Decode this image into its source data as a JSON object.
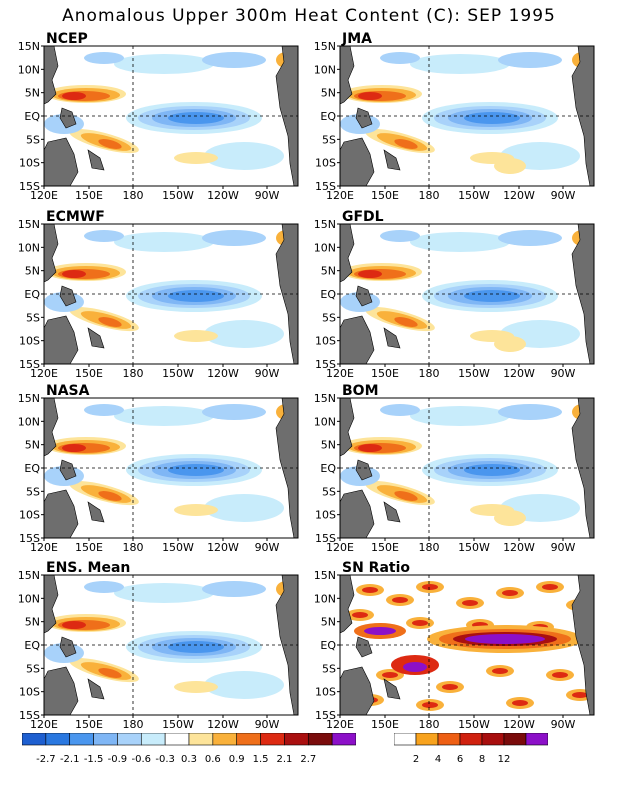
{
  "title": "Anomalous Upper 300m Heat Content (C): SEP 1995",
  "lat_labels": [
    "15N",
    "10N",
    "5N",
    "EQ",
    "5S",
    "10S",
    "15S"
  ],
  "lon_labels": [
    "120E",
    "150E",
    "180",
    "150W",
    "120W",
    "90W"
  ],
  "panels": [
    {
      "id": "ncep",
      "label": "NCEP"
    },
    {
      "id": "jma",
      "label": "JMA"
    },
    {
      "id": "ecmwf",
      "label": "ECMWF"
    },
    {
      "id": "gfdl",
      "label": "GFDL"
    },
    {
      "id": "nasa",
      "label": "NASA"
    },
    {
      "id": "bom",
      "label": "BOM"
    },
    {
      "id": "ens",
      "label": "ENS. Mean"
    },
    {
      "id": "sn",
      "label": "SN Ratio"
    }
  ],
  "colorbar_anom": {
    "labels": [
      "-2.7",
      "-2.1",
      "-1.5",
      "-0.9",
      "-0.6",
      "-0.3",
      "0.3",
      "0.6",
      "0.9",
      "1.5",
      "2.1",
      "2.7"
    ],
    "colors": [
      "#1e5fd0",
      "#2a78e0",
      "#4a96ee",
      "#7fb6f5",
      "#a8d2fa",
      "#c8ecfb",
      "#ffffff",
      "#fde49a",
      "#f9b13b",
      "#ef6f1a",
      "#dd2a12",
      "#aa1010",
      "#7a0c0c",
      "#8c10c8"
    ]
  },
  "colorbar_sn": {
    "labels": [
      "2",
      "4",
      "6",
      "8",
      "12"
    ],
    "colors": [
      "#ffffff",
      "#f8a31e",
      "#ee5f14",
      "#d0210f",
      "#a80e0e",
      "#7a0b0b",
      "#8c10c8"
    ]
  }
}
